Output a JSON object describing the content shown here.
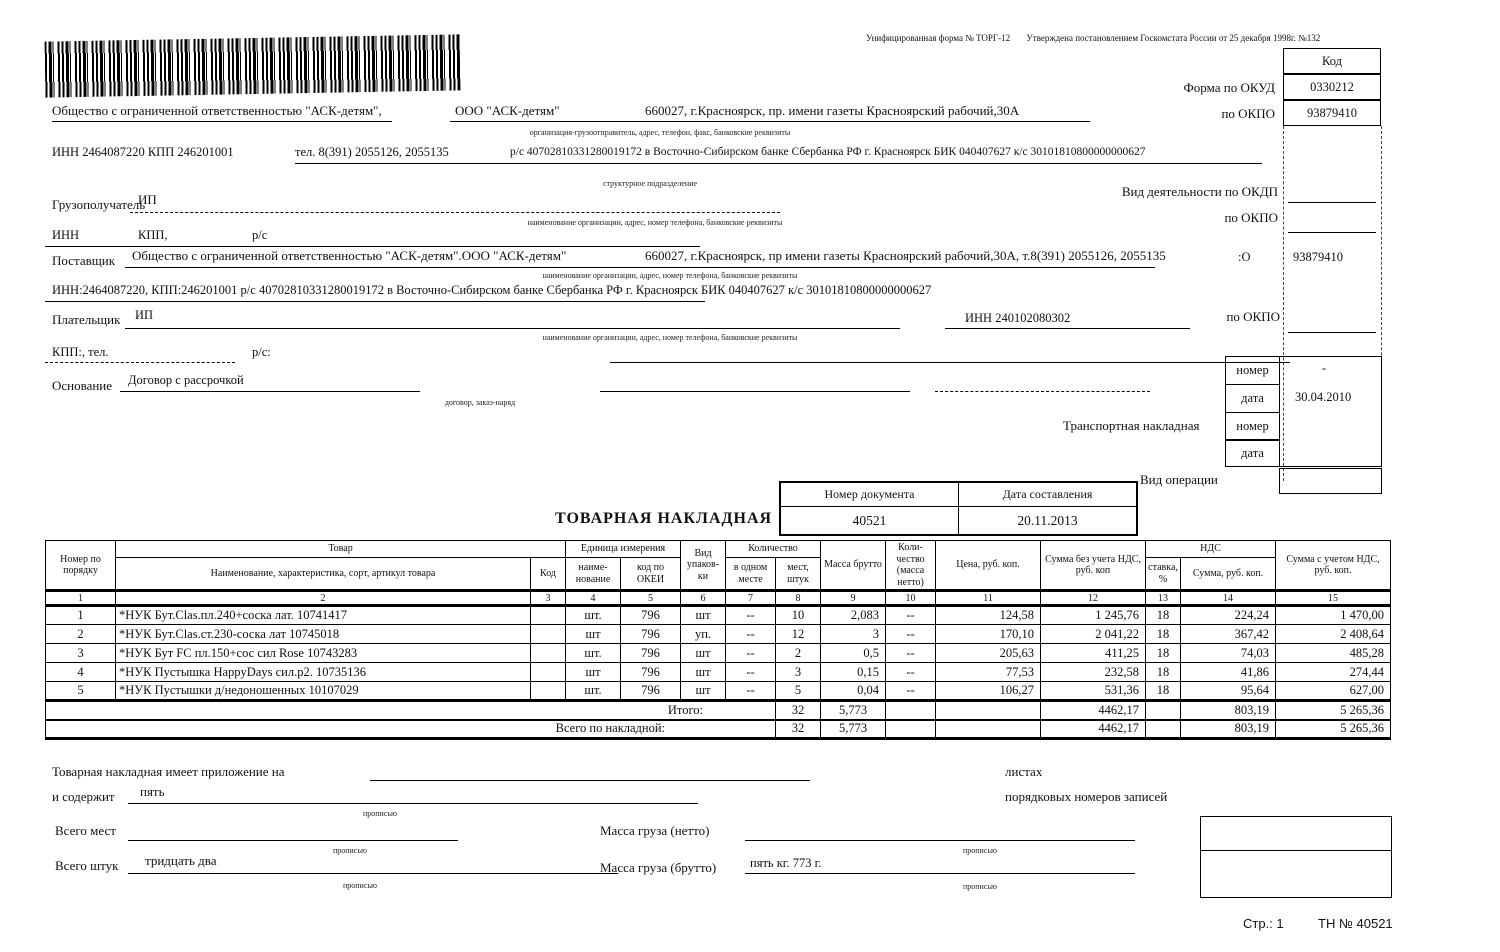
{
  "page": {
    "form_note_1": "Унифицированная форма № ТОРГ-12",
    "form_note_2": "Утверждена постановлением Госкомстата России от 25 декабря 1998г. №132",
    "footer_page": "Стр.: 1",
    "footer_doc": "ТН № 40521"
  },
  "codes": {
    "kod_header": "Код",
    "okud_label": "Форма по ОКУД",
    "okud_value": "0330212",
    "okpo_label": "по ОКПО",
    "okpo_value": "93879410",
    "okdp_label": "Вид деятельности  по ОКДП",
    "consignee_okpo_label": "по ОКПО",
    "supplier_okpo_label": ":О",
    "supplier_okpo_value": "93879410",
    "payer_okpo_label": "по ОКПО",
    "operation_label": "Вид операции"
  },
  "shipper": {
    "name_full": "Общество с ограниченной ответственностью \"АСК-детям\",",
    "name_short": "ООО  \"АСК-детям\"",
    "address": "660027, г.Красноярск, пр. имени газеты Красноярский рабочий,30А",
    "caption": "организация-грузоотправитель, адрес, телефон, факс, банковские реквизиты",
    "requisites": "ИНН 2464087220  КПП  246201001",
    "phone": "тел. 8(391) 2055126, 2055135",
    "bank": "р/с 40702810331280019172 в Восточно-Сибирском банке Сбербанка РФ г. Красноярск БИК 040407627 к/с 30101810800000000627",
    "struct_caption": "структурное подразделение"
  },
  "consignee": {
    "label": "Грузополучатель",
    "value": "ИП",
    "caption": "наименование организации, адрес, номер телефона, банковские реквизиты",
    "inn_label": "ИНН",
    "kpp_label": "КПП,",
    "rs_label": "р/с"
  },
  "supplier": {
    "label": "Поставщик",
    "value": "Общество с ограниченной ответственностью \"АСК-детям\".ООО  \"АСК-детям\"",
    "address": "660027, г.Красноярск, пр  имени газеты Красноярский рабочий,30А, т.8(391) 2055126, 2055135",
    "caption": "наименование организации, адрес, номер телефона, банковские реквизиты",
    "bank": "ИНН:2464087220, КПП:246201001 р/с 40702810331280019172 в Восточно-Сибирском банке Сбербанка РФ г. Красноярск БИК 040407627 к/с 30101810800000000627"
  },
  "payer": {
    "label": "Плательщик",
    "value": "ИП",
    "inn": "ИНН 240102080302",
    "caption": "наименование организации, адрес, номер телефона, банковские реквизиты",
    "kpp_line": "КПП:, тел.",
    "rs_label": "р/с:"
  },
  "basis": {
    "label": "Основание",
    "value": "Договор с рассрочкой",
    "caption": "договор, заказ-наряд",
    "nomer_label": "номер",
    "nomer_value": "-",
    "data_label": "дата",
    "data_value": "30.04.2010",
    "transport_label": "Транспортная накладная",
    "t_nomer_label": "номер",
    "t_data_label": "дата"
  },
  "doc": {
    "title": "ТОВАРНАЯ НАКЛАДНАЯ",
    "number_label": "Номер документа",
    "number": "40521",
    "date_label": "Дата составления",
    "date": "20.11.2013"
  },
  "table": {
    "header": {
      "num": "Номер по порядку",
      "tovar": "Товар",
      "name": "Наименование, характеристика, сорт, артикул товара",
      "code": "Код",
      "unit_group": "Единица измерения",
      "unit_name": "наиме-нование",
      "unit_okei": "код по ОКЕИ",
      "pack": "Вид упаков-ки",
      "qty_group": "Количество",
      "qty_in_place": "в одном месте",
      "qty_places": "мест, штук",
      "gross": "Масса брутто",
      "net": "Коли-чество (масса нетто)",
      "price": "Цена, руб. коп.",
      "sum_no_vat": "Сумма без учета НДС, руб. коп",
      "vat_group": "НДС",
      "vat_rate": "ставка, %",
      "vat_sum": "Сумма, руб. коп.",
      "sum_with_vat": "Сумма с учетом НДС, руб. коп."
    },
    "col_numbers": [
      "1",
      "2",
      "3",
      "4",
      "5",
      "6",
      "7",
      "8",
      "9",
      "10",
      "11",
      "12",
      "13",
      "14",
      "15"
    ],
    "rows": [
      {
        "n": "1",
        "name": "*НУК Бут.Clas.пл.240+соска лат. 10741417",
        "code": "",
        "unit": "шт.",
        "okei": "796",
        "pack": "шт",
        "in_place": "--",
        "places": "10",
        "gross": "2,083",
        "net": "--",
        "price": "124,58",
        "sum": "1 245,76",
        "rate": "18",
        "vat": "224,24",
        "total": "1 470,00"
      },
      {
        "n": "2",
        "name": "*НУК Бут.Clas.ст.230-соска лат  10745018",
        "code": "",
        "unit": "шт",
        "okei": "796",
        "pack": "уп.",
        "in_place": "--",
        "places": "12",
        "gross": "3",
        "net": "--",
        "price": "170,10",
        "sum": "2 041,22",
        "rate": "18",
        "vat": "367,42",
        "total": "2 408,64"
      },
      {
        "n": "3",
        "name": "*НУК Бут FC пл.150+сос сил Rose 10743283",
        "code": "",
        "unit": "шт.",
        "okei": "796",
        "pack": "шт",
        "in_place": "--",
        "places": "2",
        "gross": "0,5",
        "net": "--",
        "price": "205,63",
        "sum": "411,25",
        "rate": "18",
        "vat": "74,03",
        "total": "485,28"
      },
      {
        "n": "4",
        "name": "*НУК Пустышка HappyDays сил.р2. 10735136",
        "code": "",
        "unit": "шт",
        "okei": "796",
        "pack": "шт",
        "in_place": "--",
        "places": "3",
        "gross": "0,15",
        "net": "--",
        "price": "77,53",
        "sum": "232,58",
        "rate": "18",
        "vat": "41,86",
        "total": "274,44"
      },
      {
        "n": "5",
        "name": "*НУК Пустышки д/недоношенных 10107029",
        "code": "",
        "unit": "шт.",
        "okei": "796",
        "pack": "шт",
        "in_place": "--",
        "places": "5",
        "gross": "0,04",
        "net": "--",
        "price": "106,27",
        "sum": "531,36",
        "rate": "18",
        "vat": "95,64",
        "total": "627,00"
      }
    ],
    "totals": [
      {
        "label": "Итого:",
        "places": "32",
        "gross": "5,773",
        "sum": "4462,17",
        "vat": "803,19",
        "total": "5 265,36"
      },
      {
        "label": "Всего по накладной:",
        "places": "32",
        "gross": "5,773",
        "sum": "4462,17",
        "vat": "803,19",
        "total": "5 265,36"
      }
    ]
  },
  "bottom": {
    "attach_line": "Товарная накладная имеет приложение на",
    "sheets": "листах",
    "contains_label": "и содержит",
    "contains_value": "пять",
    "propisyu": "прописью",
    "records": "порядковых номеров записей",
    "total_places_label": "Всего мест",
    "total_items_label": "Всего штук",
    "total_items_value": "тридцать два",
    "mass_net_label": "Масса груза (нетто)",
    "mass_gross_label": "Масса груза (брутто)",
    "mass_gross_value": "пять  кг. 773 г."
  }
}
